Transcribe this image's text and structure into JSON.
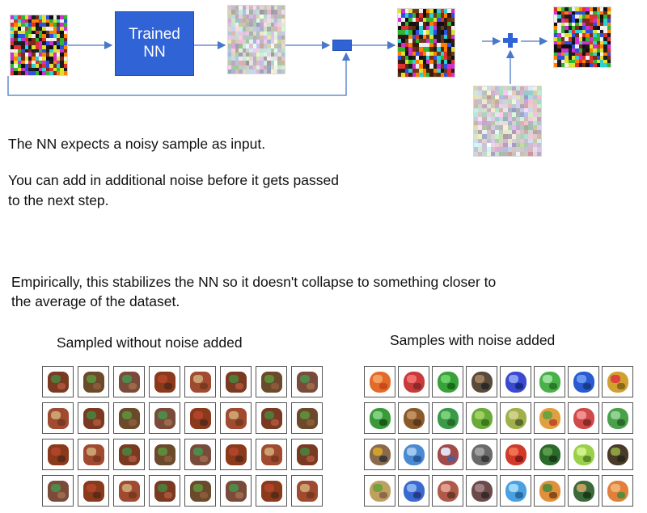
{
  "diagram": {
    "nn_label_line1": "Trained",
    "nn_label_line2": "NN",
    "accent_color": "#2f63d6",
    "arrow_color": "#4a78c8"
  },
  "text": {
    "line1": "The NN expects a noisy sample as input.",
    "line2": "You can add in additional noise before it gets passed",
    "line3": "to the next step.",
    "line4": "Empirically, this stabilizes the NN so it doesn't collapse to something closer to",
    "line5": "the average of the dataset."
  },
  "grids": {
    "left_title": "Sampled without noise added",
    "right_title": "Samples with noise added"
  }
}
